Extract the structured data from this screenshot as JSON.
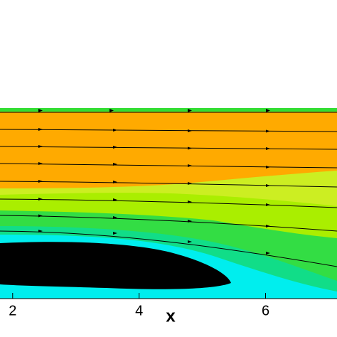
{
  "chart_data": {
    "type": "contour",
    "xlabel": "x",
    "xlim": [
      1.8,
      7.13
    ],
    "xticks": [
      2,
      4,
      6
    ]
  }
}
